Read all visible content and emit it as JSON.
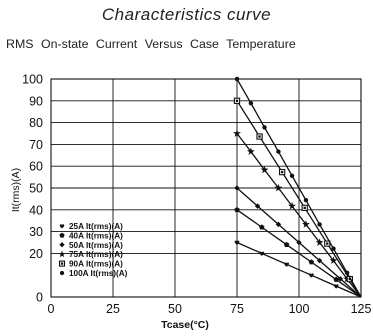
{
  "header": {
    "title": "Characteristics  curve",
    "subtitle": "RMS  On-state  Current  Versus  Case  Temperature"
  },
  "chart_data": {
    "type": "line",
    "xlabel": "Tcase(°C)",
    "ylabel": "It(rms)(A)",
    "xlim": [
      0,
      125
    ],
    "ylim": [
      0,
      100
    ],
    "x_ticks": [
      "0",
      "25",
      "50",
      "75",
      "100",
      "125"
    ],
    "y_ticks": [
      "0",
      "20",
      "30",
      "40",
      "50",
      "60",
      "70",
      "80",
      "90",
      "100"
    ],
    "grid": true,
    "legend_position": "bottom-left",
    "colors": {
      "line": "#111111",
      "grid": "#111111"
    },
    "series": [
      {
        "name": "25A It(rms)(A)",
        "marker": "heart",
        "x": [
          75,
          85,
          95,
          105,
          115,
          125
        ],
        "y": [
          25,
          20,
          15,
          10,
          5,
          0
        ]
      },
      {
        "name": "40A It(rms)(A)",
        "marker": "pentagon",
        "x": [
          75,
          85,
          95,
          105,
          115,
          125
        ],
        "y": [
          40,
          32,
          24,
          16,
          8,
          0
        ]
      },
      {
        "name": "50A It(rms)(A)",
        "marker": "diamond",
        "x": [
          75,
          83.3,
          91.7,
          100,
          108.3,
          116.7,
          125
        ],
        "y": [
          50,
          41.7,
          33.3,
          25,
          16.7,
          8.3,
          0
        ]
      },
      {
        "name": "75A It(rms)(A)",
        "marker": "star",
        "x": [
          75,
          80.6,
          86.1,
          91.7,
          97.2,
          102.8,
          108.3,
          113.9,
          119.4,
          125
        ],
        "y": [
          75,
          66.7,
          58.3,
          50,
          41.7,
          33.3,
          25,
          16.7,
          8.3,
          0
        ]
      },
      {
        "name": "90A It(rms)(A)",
        "marker": "square",
        "x": [
          75,
          84.1,
          93.2,
          102.3,
          111.4,
          120.5,
          125
        ],
        "y": [
          90,
          73.6,
          57.3,
          40.9,
          24.5,
          8.2,
          0
        ]
      },
      {
        "name": "100A It(rms)(A)",
        "marker": "circle",
        "x": [
          75,
          80.6,
          86.1,
          91.7,
          97.2,
          102.8,
          108.3,
          113.9,
          119.4,
          125
        ],
        "y": [
          100,
          88.9,
          77.8,
          66.7,
          55.6,
          44.4,
          33.3,
          22.2,
          11.1,
          0
        ]
      }
    ]
  }
}
